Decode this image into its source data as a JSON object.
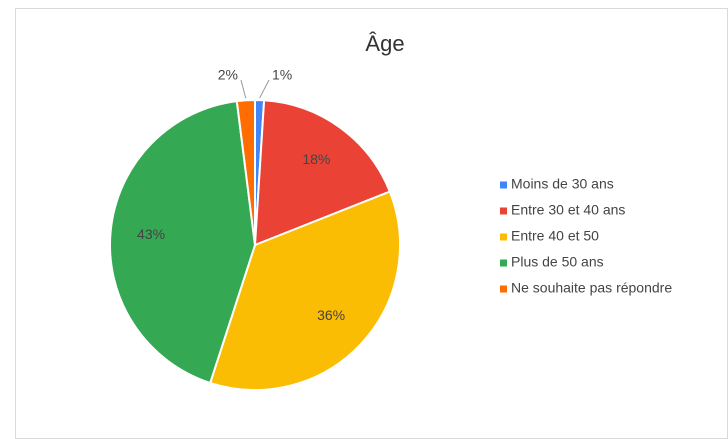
{
  "chart_data": {
    "type": "pie",
    "title": "Âge",
    "categories": [
      "Moins de 30 ans",
      "Entre 30 et 40 ans",
      "Entre 40 et 50",
      "Plus de 50 ans",
      "Ne souhaite pas répondre"
    ],
    "values": [
      1,
      18,
      36,
      43,
      2
    ],
    "value_labels": [
      "1%",
      "18%",
      "36%",
      "43%",
      "2%"
    ],
    "colors": [
      "#4285f4",
      "#ea4335",
      "#fbbc04",
      "#34a853",
      "#ff6d01"
    ],
    "legend": "right"
  }
}
